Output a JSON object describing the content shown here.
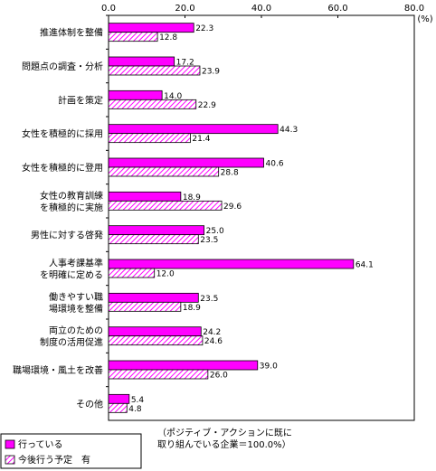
{
  "chart_data": {
    "type": "bar",
    "orientation": "horizontal",
    "unit_label": "(%)",
    "xlim": [
      0,
      80
    ],
    "xticks": [
      "0.0",
      "20.0",
      "40.0",
      "60.0",
      "80.0"
    ],
    "grid": false,
    "legend_position": "bottom-left",
    "categories": [
      [
        "推進体制を整備"
      ],
      [
        "問題点の調査・分析"
      ],
      [
        "計画を策定"
      ],
      [
        "女性を積極的に採用"
      ],
      [
        "女性を積極的に登用"
      ],
      [
        "女性の教育訓練",
        "を積極的に実施"
      ],
      [
        "男性に対する啓発"
      ],
      [
        "人事考課基準",
        "を明確に定める"
      ],
      [
        "働きやすい職",
        "場環境を整備"
      ],
      [
        "両立のための",
        "制度の活用促進"
      ],
      [
        "職場環境・風土を改善"
      ],
      [
        "その他"
      ]
    ],
    "series": [
      {
        "name": "行っている",
        "color": "#ff00ff",
        "pattern": "solid",
        "values": [
          22.3,
          17.2,
          14.0,
          44.3,
          40.6,
          18.9,
          25.0,
          64.1,
          23.5,
          24.2,
          39.0,
          5.4
        ],
        "labels": [
          "22.3",
          "17.2",
          "14.0",
          "44.3",
          "40.6",
          "18.9",
          "25.0",
          "64.1",
          "23.5",
          "24.2",
          "39.0",
          "5.4"
        ]
      },
      {
        "name": "今後行う予定　有",
        "color": "#ff00ff",
        "pattern": "hatched",
        "values": [
          12.8,
          23.9,
          22.9,
          21.4,
          28.8,
          29.6,
          23.5,
          12.0,
          18.9,
          24.6,
          26.0,
          4.8
        ],
        "labels": [
          "12.8",
          "23.9",
          "22.9",
          "21.4",
          "28.8",
          "29.6",
          "23.5",
          "12.0",
          "18.9",
          "24.6",
          "26.0",
          "4.8"
        ]
      }
    ],
    "note": [
      "（ポジティブ・アクションに既に",
      "取り組んでいる企業＝100.0%）"
    ]
  }
}
